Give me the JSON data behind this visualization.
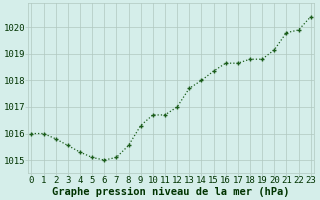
{
  "x": [
    0,
    1,
    2,
    3,
    4,
    5,
    6,
    7,
    8,
    9,
    10,
    11,
    12,
    13,
    14,
    15,
    16,
    17,
    18,
    19,
    20,
    21,
    22,
    23
  ],
  "y": [
    1016.0,
    1016.0,
    1015.8,
    1015.55,
    1015.3,
    1015.1,
    1015.0,
    1015.1,
    1015.55,
    1016.3,
    1016.7,
    1016.7,
    1017.0,
    1017.7,
    1018.0,
    1018.35,
    1018.65,
    1018.65,
    1018.8,
    1018.8,
    1019.15,
    1019.8,
    1019.9,
    1020.4
  ],
  "line_color": "#1a5c1a",
  "marker": "+",
  "marker_size": 3,
  "marker_linewidth": 1.0,
  "background_color": "#d5eeea",
  "grid_color": "#b0c8c0",
  "text_color": "#1a4a1a",
  "ylabel_ticks": [
    1015,
    1016,
    1017,
    1018,
    1019,
    1020
  ],
  "ylim": [
    1014.5,
    1020.9
  ],
  "xlim": [
    -0.3,
    23.3
  ],
  "xlabel": "Graphe pression niveau de la mer (hPa)",
  "xlabel_fontsize": 7.5,
  "tick_fontsize": 6.5,
  "title_color": "#003300",
  "linewidth": 0.9,
  "linestyle": ":"
}
